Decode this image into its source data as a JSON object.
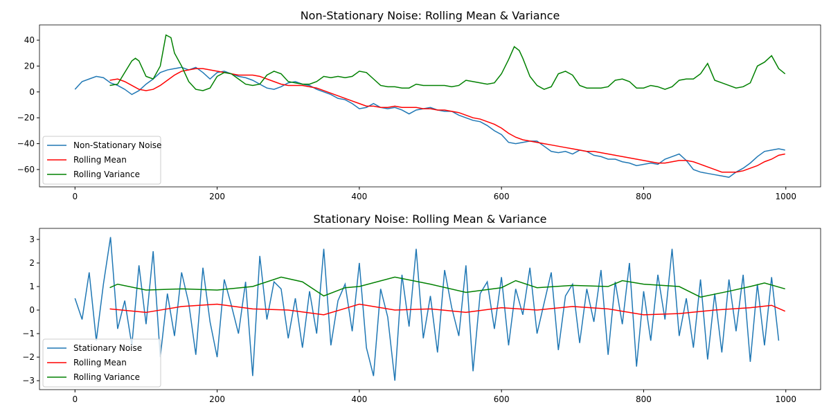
{
  "chart_data": [
    {
      "type": "line",
      "title": "Non-Stationary Noise: Rolling Mean & Variance",
      "xlim": [
        -49.95,
        1048.95
      ],
      "xticks": [
        0,
        200,
        400,
        600,
        800,
        1000
      ],
      "ylim": [
        -73.4,
        51.8
      ],
      "yticks": [
        {
          "value": -60,
          "label": "−60"
        },
        {
          "value": -40,
          "label": "−40"
        },
        {
          "value": -20,
          "label": "−20"
        },
        0,
        20,
        40
      ],
      "legend": "lower left",
      "series": [
        {
          "name": "Non-Stationary Noise",
          "color": "#1f77b4",
          "x": [
            0,
            10,
            20,
            30,
            40,
            50,
            60,
            70,
            80,
            90,
            100,
            110,
            120,
            130,
            140,
            150,
            160,
            170,
            180,
            190,
            200,
            210,
            220,
            230,
            240,
            250,
            260,
            270,
            280,
            290,
            300,
            310,
            320,
            330,
            340,
            350,
            360,
            370,
            380,
            390,
            400,
            410,
            420,
            430,
            440,
            450,
            460,
            470,
            480,
            490,
            500,
            510,
            520,
            530,
            540,
            550,
            560,
            570,
            580,
            590,
            600,
            610,
            620,
            630,
            640,
            650,
            660,
            670,
            680,
            690,
            700,
            710,
            720,
            730,
            740,
            750,
            760,
            770,
            780,
            790,
            800,
            810,
            820,
            830,
            840,
            850,
            860,
            870,
            880,
            890,
            900,
            910,
            920,
            930,
            940,
            950,
            960,
            970,
            980,
            990,
            999
          ],
          "values": [
            2,
            8,
            10,
            12,
            11,
            7,
            5,
            2,
            -2,
            1,
            6,
            10,
            15,
            17,
            18,
            19,
            17,
            19,
            15,
            10,
            15,
            16,
            14,
            12,
            11,
            9,
            6,
            3,
            2,
            4,
            7,
            8,
            6,
            5,
            2,
            0,
            -2,
            -5,
            -6,
            -9,
            -13,
            -12,
            -9,
            -12,
            -13,
            -12,
            -14,
            -17,
            -14,
            -13,
            -12,
            -14,
            -15,
            -15,
            -18,
            -20,
            -22,
            -23,
            -26,
            -30,
            -33,
            -39,
            -40,
            -39,
            -38,
            -38,
            -42,
            -46,
            -47,
            -46,
            -48,
            -45,
            -46,
            -49,
            -50,
            -52,
            -52,
            -54,
            -55,
            -57,
            -56,
            -55,
            -56,
            -52,
            -50,
            -48,
            -53,
            -60,
            -62,
            -63,
            -64,
            -65,
            -66,
            -62,
            -59,
            -55,
            -50,
            -46,
            -45,
            -44,
            -45
          ]
        },
        {
          "name": "Rolling Mean",
          "color": "#ff0000",
          "x": [
            49,
            60,
            70,
            80,
            90,
            100,
            110,
            120,
            130,
            140,
            150,
            160,
            170,
            180,
            190,
            200,
            210,
            220,
            230,
            240,
            250,
            260,
            270,
            280,
            290,
            300,
            310,
            320,
            330,
            340,
            350,
            360,
            370,
            380,
            390,
            400,
            410,
            420,
            430,
            440,
            450,
            460,
            470,
            480,
            490,
            500,
            510,
            520,
            530,
            540,
            550,
            560,
            570,
            580,
            590,
            600,
            610,
            620,
            630,
            640,
            650,
            660,
            670,
            680,
            690,
            700,
            710,
            720,
            730,
            740,
            750,
            760,
            770,
            780,
            790,
            800,
            810,
            820,
            830,
            840,
            850,
            860,
            870,
            880,
            890,
            900,
            910,
            920,
            930,
            940,
            950,
            960,
            970,
            980,
            990,
            999
          ],
          "values": [
            9,
            10,
            8,
            5,
            2,
            1,
            2,
            5,
            9,
            13,
            16,
            17,
            18,
            18,
            17,
            16,
            15,
            14,
            13,
            13,
            13,
            12,
            10,
            8,
            6,
            5,
            5,
            5,
            4,
            3,
            1,
            -1,
            -3,
            -5,
            -7,
            -9,
            -11,
            -11,
            -12,
            -12,
            -11,
            -12,
            -12,
            -12,
            -13,
            -13,
            -14,
            -14,
            -15,
            -16,
            -18,
            -20,
            -21,
            -23,
            -25,
            -28,
            -32,
            -35,
            -37,
            -38,
            -39,
            -40,
            -41,
            -42,
            -43,
            -44,
            -45,
            -46,
            -46,
            -47,
            -48,
            -49,
            -50,
            -51,
            -52,
            -53,
            -54,
            -55,
            -55,
            -54,
            -53,
            -53,
            -54,
            -56,
            -58,
            -60,
            -62,
            -62,
            -62,
            -61,
            -59,
            -57,
            -54,
            -52,
            -49,
            -48
          ]
        },
        {
          "name": "Rolling Variance",
          "color": "#008000",
          "x": [
            49,
            60,
            70,
            80,
            85,
            90,
            100,
            110,
            120,
            128,
            135,
            140,
            150,
            160,
            170,
            180,
            190,
            200,
            210,
            220,
            230,
            240,
            250,
            260,
            270,
            280,
            290,
            300,
            310,
            320,
            330,
            340,
            350,
            360,
            370,
            380,
            390,
            400,
            410,
            420,
            430,
            440,
            450,
            460,
            470,
            480,
            490,
            500,
            510,
            520,
            530,
            540,
            550,
            560,
            570,
            580,
            590,
            600,
            610,
            618,
            625,
            630,
            640,
            650,
            660,
            670,
            680,
            690,
            700,
            710,
            720,
            730,
            740,
            750,
            760,
            770,
            780,
            790,
            800,
            810,
            820,
            830,
            840,
            850,
            860,
            870,
            880,
            890,
            900,
            910,
            920,
            930,
            940,
            950,
            960,
            970,
            980,
            990,
            999
          ],
          "values": [
            5,
            6,
            15,
            24,
            26,
            24,
            12,
            10,
            20,
            44,
            42,
            30,
            20,
            8,
            2,
            1,
            3,
            12,
            15,
            14,
            10,
            6,
            5,
            6,
            13,
            16,
            14,
            8,
            7,
            6,
            6,
            8,
            12,
            11,
            12,
            11,
            12,
            16,
            15,
            10,
            5,
            4,
            4,
            3,
            3,
            6,
            5,
            5,
            5,
            5,
            4,
            5,
            9,
            8,
            7,
            6,
            7,
            14,
            25,
            35,
            32,
            26,
            12,
            5,
            2,
            4,
            14,
            16,
            13,
            5,
            3,
            3,
            3,
            4,
            9,
            10,
            8,
            3,
            3,
            5,
            4,
            2,
            4,
            9,
            10,
            10,
            14,
            22,
            9,
            7,
            5,
            3,
            4,
            7,
            20,
            23,
            28,
            18,
            14
          ]
        }
      ]
    },
    {
      "type": "line",
      "title": "Stationary Noise: Rolling Mean & Variance",
      "xlim": [
        -49.95,
        1048.95
      ],
      "xticks": [
        0,
        200,
        400,
        600,
        800,
        1000
      ],
      "ylim": [
        -3.38,
        3.47
      ],
      "yticks": [
        {
          "value": -3,
          "label": "−3"
        },
        {
          "value": -2,
          "label": "−2"
        },
        {
          "value": -1,
          "label": "−1"
        },
        0,
        1,
        2,
        3
      ],
      "legend": "lower left",
      "series": [
        {
          "name": "Stationary Noise",
          "color": "#1f77b4",
          "x": [
            0,
            10,
            20,
            30,
            40,
            50,
            60,
            70,
            80,
            90,
            100,
            110,
            120,
            130,
            140,
            150,
            160,
            170,
            180,
            190,
            200,
            210,
            220,
            230,
            240,
            250,
            260,
            270,
            280,
            290,
            300,
            310,
            320,
            330,
            340,
            350,
            360,
            370,
            380,
            390,
            400,
            410,
            420,
            430,
            440,
            450,
            460,
            470,
            480,
            490,
            500,
            510,
            520,
            530,
            540,
            550,
            560,
            570,
            580,
            590,
            600,
            610,
            620,
            630,
            640,
            650,
            660,
            670,
            680,
            690,
            700,
            710,
            720,
            730,
            740,
            750,
            760,
            770,
            780,
            790,
            800,
            810,
            820,
            830,
            840,
            850,
            860,
            870,
            880,
            890,
            900,
            910,
            920,
            930,
            940,
            950,
            960,
            970,
            980,
            990
          ],
          "values": [
            0.5,
            -0.4,
            1.6,
            -1.3,
            1.1,
            3.1,
            -0.8,
            0.4,
            -1.5,
            1.9,
            -0.6,
            2.5,
            -2.0,
            0.7,
            -1.1,
            1.6,
            0.3,
            -1.9,
            1.8,
            -0.5,
            -2.0,
            1.3,
            0.2,
            -1.0,
            1.2,
            -2.8,
            2.3,
            -0.4,
            1.2,
            0.9,
            -1.2,
            0.5,
            -1.6,
            0.8,
            -1.0,
            2.6,
            -1.5,
            0.4,
            1.1,
            -0.9,
            2.0,
            -1.6,
            -2.8,
            0.9,
            -0.3,
            -3.0,
            1.5,
            -0.7,
            2.6,
            -1.2,
            0.6,
            -1.8,
            1.7,
            0.1,
            -1.1,
            1.9,
            -2.6,
            0.7,
            1.2,
            -0.8,
            1.4,
            -1.5,
            0.9,
            -0.2,
            1.8,
            -1.0,
            0.3,
            1.6,
            -1.7,
            0.6,
            1.1,
            -1.4,
            0.9,
            -0.5,
            1.7,
            -1.9,
            1.2,
            -0.6,
            2.0,
            -2.4,
            0.8,
            -1.3,
            1.5,
            -0.4,
            2.6,
            -1.1,
            0.5,
            -1.6,
            1.3,
            -2.1,
            0.7,
            -1.8,
            1.3,
            -0.9,
            1.5,
            -2.2,
            1.1,
            -1.5,
            1.4,
            -1.3
          ]
        },
        {
          "name": "Rolling Mean",
          "color": "#ff0000",
          "x": [
            49,
            100,
            150,
            200,
            250,
            300,
            350,
            400,
            450,
            500,
            550,
            600,
            650,
            700,
            750,
            800,
            850,
            900,
            950,
            980,
            999
          ],
          "values": [
            0.05,
            -0.1,
            0.15,
            0.25,
            0.05,
            0.0,
            -0.2,
            0.25,
            0.0,
            0.05,
            -0.1,
            0.1,
            0.0,
            0.15,
            0.05,
            -0.2,
            -0.15,
            0.0,
            0.1,
            0.2,
            -0.05
          ]
        },
        {
          "name": "Rolling Variance",
          "color": "#008000",
          "x": [
            49,
            60,
            100,
            150,
            200,
            250,
            290,
            320,
            350,
            380,
            400,
            450,
            500,
            550,
            600,
            620,
            650,
            700,
            750,
            770,
            800,
            850,
            880,
            920,
            950,
            970,
            999
          ],
          "values": [
            0.95,
            1.1,
            0.85,
            0.9,
            0.85,
            1.0,
            1.4,
            1.2,
            0.6,
            0.95,
            1.0,
            1.4,
            1.1,
            0.75,
            0.95,
            1.25,
            0.95,
            1.05,
            1.0,
            1.25,
            1.1,
            1.0,
            0.55,
            0.8,
            1.0,
            1.15,
            0.9
          ]
        }
      ]
    }
  ]
}
